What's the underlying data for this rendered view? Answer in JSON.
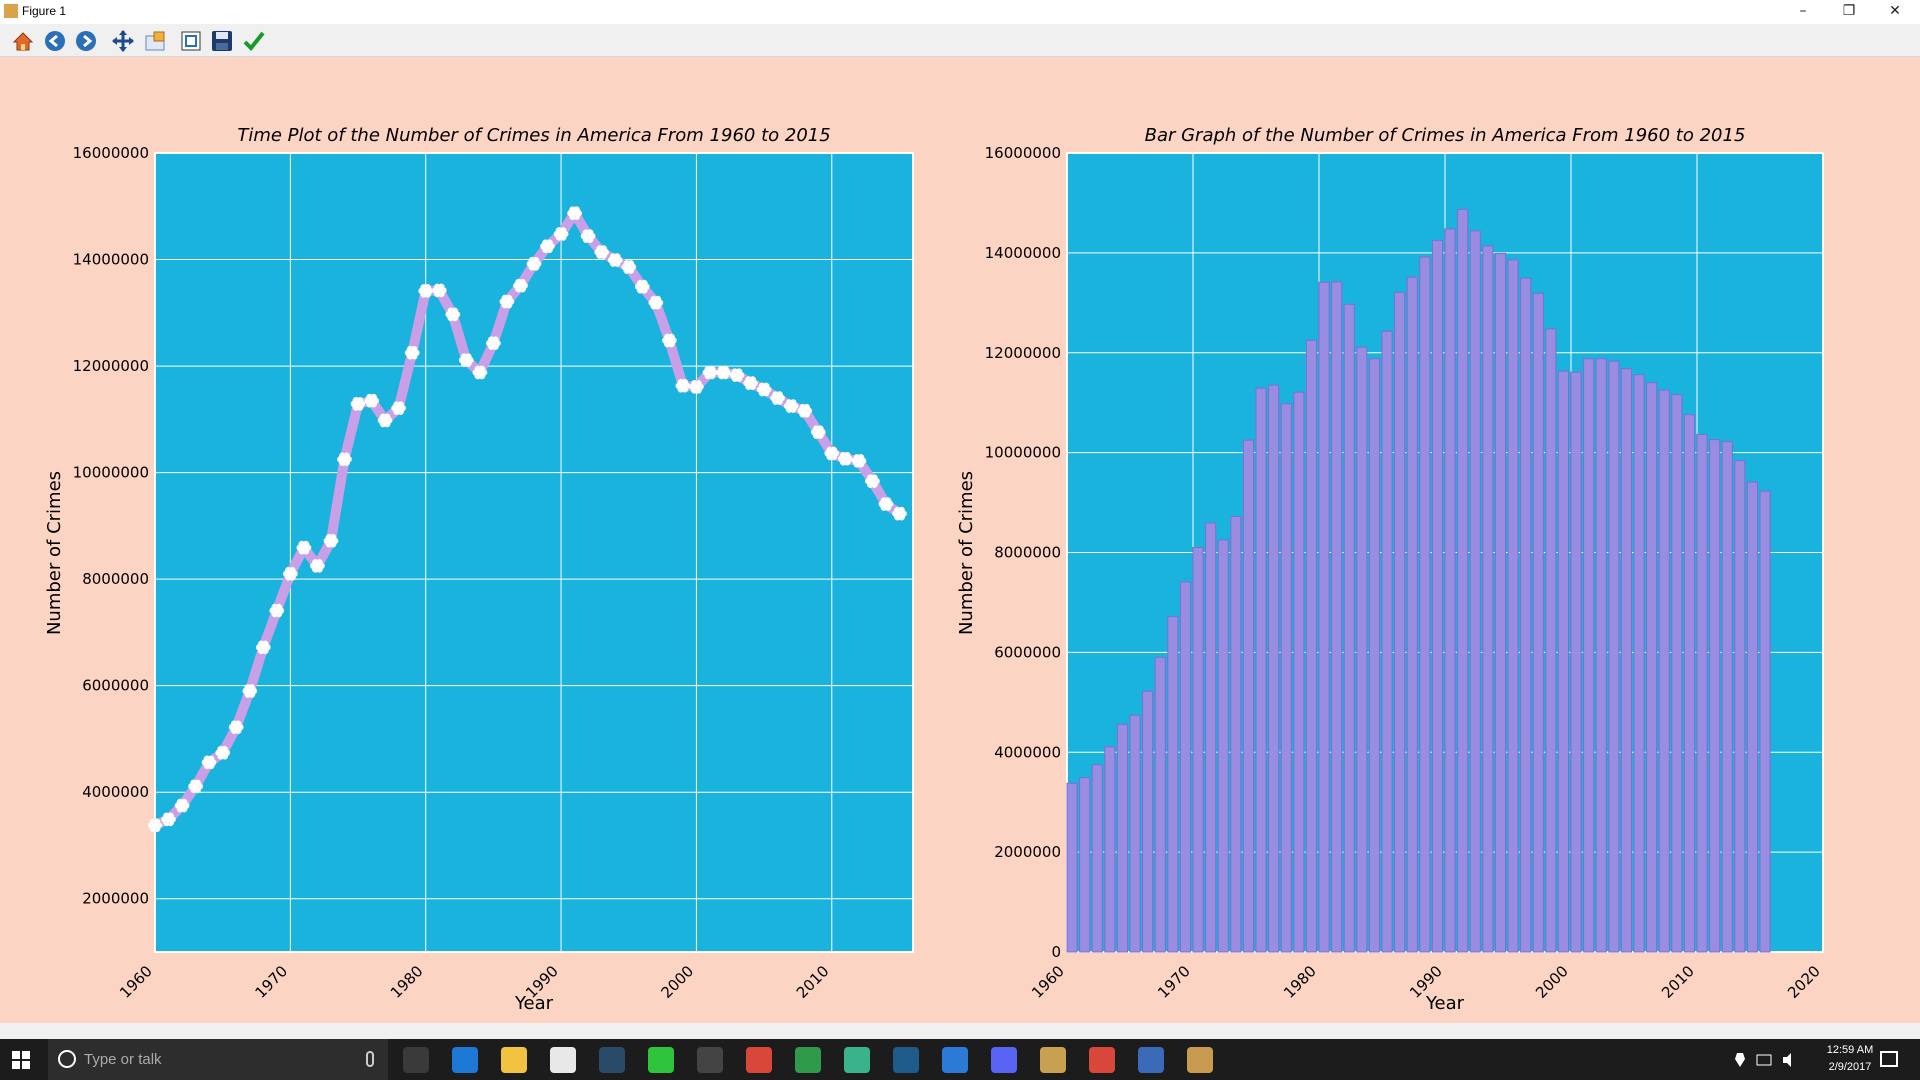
{
  "window": {
    "title": "Figure 1",
    "minimize": "–",
    "maximize": "❐",
    "close": "✕"
  },
  "toolbar": {
    "items": [
      {
        "icon": "home-icon"
      },
      {
        "icon": "back-arrow-icon"
      },
      {
        "icon": "forward-arrow-icon"
      },
      {
        "icon": "pan-icon"
      },
      {
        "icon": "zoom-icon"
      },
      {
        "icon": "configure-subplots-icon"
      },
      {
        "icon": "save-icon"
      },
      {
        "icon": "edit-check-icon"
      }
    ]
  },
  "colors": {
    "plot_bg": "#1ab3dd",
    "figure_bg": "#fcd4c4",
    "line": "#c9a0e8",
    "marker": "#ffffff",
    "bar": "#9a8ce0",
    "bar_edge": "#7b6fd0",
    "grid": "#ffffff"
  },
  "chart_data": [
    {
      "type": "line",
      "title": "Time Plot of the Number of Crimes in America From 1960 to 2015",
      "xlabel": "Year",
      "ylabel": "Number of Crimes",
      "xlim": [
        1960,
        2016
      ],
      "ylim": [
        1000000,
        16000000
      ],
      "xticks": [
        1960,
        1970,
        1980,
        1990,
        2000,
        2010
      ],
      "yticks": [
        2000000,
        4000000,
        6000000,
        8000000,
        10000000,
        12000000,
        14000000,
        16000000
      ],
      "grid": true,
      "x": [
        1960,
        1961,
        1962,
        1963,
        1964,
        1965,
        1966,
        1967,
        1968,
        1969,
        1970,
        1971,
        1972,
        1973,
        1974,
        1975,
        1976,
        1977,
        1978,
        1979,
        1980,
        1981,
        1982,
        1983,
        1984,
        1985,
        1986,
        1987,
        1988,
        1989,
        1990,
        1991,
        1992,
        1993,
        1994,
        1995,
        1996,
        1997,
        1998,
        1999,
        2000,
        2001,
        2002,
        2003,
        2004,
        2005,
        2006,
        2007,
        2008,
        2009,
        2010,
        2011,
        2012,
        2013,
        2014,
        2015
      ],
      "y": [
        3380000,
        3490000,
        3750000,
        4110000,
        4560000,
        4740000,
        5220000,
        5900000,
        6720000,
        7410000,
        8100000,
        8590000,
        8250000,
        8720000,
        10250000,
        11290000,
        11350000,
        10980000,
        11210000,
        12250000,
        13410000,
        13420000,
        12970000,
        12110000,
        11880000,
        12430000,
        13210000,
        13510000,
        13920000,
        14250000,
        14480000,
        14870000,
        14440000,
        14140000,
        13990000,
        13860000,
        13490000,
        13190000,
        12480000,
        11630000,
        11610000,
        11880000,
        11880000,
        11830000,
        11680000,
        11560000,
        11400000,
        11250000,
        11160000,
        10760000,
        10360000,
        10260000,
        10220000,
        9840000,
        9410000,
        9230000
      ]
    },
    {
      "type": "bar",
      "title": "Bar Graph of the Number of Crimes in America From 1960 to 2015",
      "xlabel": "Year",
      "ylabel": "Number of Crimes",
      "xlim": [
        1960,
        2020
      ],
      "ylim": [
        0,
        16000000
      ],
      "xticks": [
        1960,
        1970,
        1980,
        1990,
        2000,
        2010,
        2020
      ],
      "yticks": [
        0,
        2000000,
        4000000,
        6000000,
        8000000,
        10000000,
        12000000,
        14000000,
        16000000
      ],
      "grid": true,
      "x": [
        1960,
        1961,
        1962,
        1963,
        1964,
        1965,
        1966,
        1967,
        1968,
        1969,
        1970,
        1971,
        1972,
        1973,
        1974,
        1975,
        1976,
        1977,
        1978,
        1979,
        1980,
        1981,
        1982,
        1983,
        1984,
        1985,
        1986,
        1987,
        1988,
        1989,
        1990,
        1991,
        1992,
        1993,
        1994,
        1995,
        1996,
        1997,
        1998,
        1999,
        2000,
        2001,
        2002,
        2003,
        2004,
        2005,
        2006,
        2007,
        2008,
        2009,
        2010,
        2011,
        2012,
        2013,
        2014,
        2015
      ],
      "values": [
        3380000,
        3490000,
        3750000,
        4110000,
        4560000,
        4740000,
        5220000,
        5900000,
        6720000,
        7410000,
        8100000,
        8590000,
        8250000,
        8720000,
        10250000,
        11290000,
        11350000,
        10980000,
        11210000,
        12250000,
        13410000,
        13420000,
        12970000,
        12110000,
        11880000,
        12430000,
        13210000,
        13510000,
        13920000,
        14250000,
        14480000,
        14870000,
        14440000,
        14140000,
        13990000,
        13860000,
        13490000,
        13190000,
        12480000,
        11630000,
        11610000,
        11880000,
        11880000,
        11830000,
        11680000,
        11560000,
        11400000,
        11250000,
        11160000,
        10760000,
        10360000,
        10260000,
        10220000,
        9840000,
        9410000,
        9230000
      ]
    }
  ],
  "taskbar": {
    "search_placeholder": "Type or talk",
    "apps": [
      {
        "icon": "task-view-icon",
        "color": "#3a3a3a"
      },
      {
        "icon": "edge-icon",
        "color": "#1e78d6"
      },
      {
        "icon": "file-explorer-icon",
        "color": "#f2c240"
      },
      {
        "icon": "store-icon",
        "color": "#e8e8e8"
      },
      {
        "icon": "steam-icon",
        "color": "#2a4a6a"
      },
      {
        "icon": "green-triangle-app-icon",
        "color": "#2ec43c"
      },
      {
        "icon": "blender-icon",
        "color": "#444444"
      },
      {
        "icon": "chrome-icon",
        "color": "#d9463a"
      },
      {
        "icon": "spreadsheet-app-icon",
        "color": "#2e9a4a"
      },
      {
        "icon": "android-studio-icon",
        "color": "#3ab38c"
      },
      {
        "icon": "visual-studio-icon",
        "color": "#1e5a8a"
      },
      {
        "icon": "outlook-icon",
        "color": "#2b7bd6"
      },
      {
        "icon": "discord-icon",
        "color": "#5865f2"
      },
      {
        "icon": "media-app-icon",
        "color": "#c8a050"
      },
      {
        "icon": "chrome-active-icon",
        "color": "#d9463a"
      },
      {
        "icon": "camera-app-icon",
        "color": "#3a6ab8"
      },
      {
        "icon": "matplotlib-figure-icon",
        "color": "#c89a50"
      }
    ],
    "clock_time": "12:59 AM",
    "clock_date": "2/9/2017"
  }
}
